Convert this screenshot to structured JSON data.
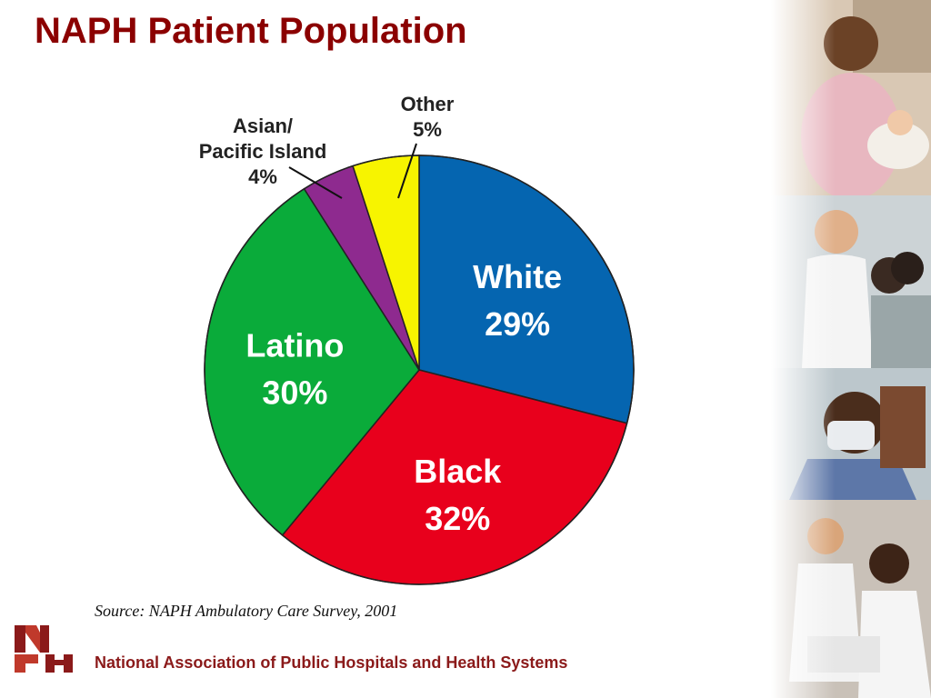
{
  "title": "NAPH Patient Population",
  "chart_data": {
    "type": "pie",
    "title": "NAPH Patient Population",
    "slices": [
      {
        "name": "White",
        "value": 29,
        "label": "29%",
        "color": "#0565b0"
      },
      {
        "name": "Black",
        "value": 32,
        "label": "32%",
        "color": "#e8001c"
      },
      {
        "name": "Latino",
        "value": 30,
        "label": "30%",
        "color": "#0aab3a"
      },
      {
        "name": "Asian/ Pacific Island",
        "value": 4,
        "label": "4%",
        "color": "#8e2a8f"
      },
      {
        "name": "Other",
        "value": 5,
        "label": "5%",
        "color": "#f7f400"
      }
    ],
    "labels_inside": [
      "White",
      "Black",
      "Latino"
    ],
    "labels_outside": [
      "Asian/ Pacific Island",
      "Other"
    ]
  },
  "outside_labels": {
    "asian_line1": "Asian/",
    "asian_line2": "Pacific Island",
    "asian_pct": "4%",
    "other_line1": "Other",
    "other_pct": "5%"
  },
  "source": "Source: NAPH Ambulatory Care Survey, 2001",
  "footer": {
    "logo_text": "NAPH",
    "org_name": "National Association of Public Hospitals and Health Systems",
    "brand_color": "#8b1a1a"
  },
  "photo_strip": {
    "icons": [
      "nurse-with-baby-photo",
      "doctor-with-family-photo",
      "surgeon-mask-photo",
      "nurse-and-doctor-photo"
    ]
  }
}
